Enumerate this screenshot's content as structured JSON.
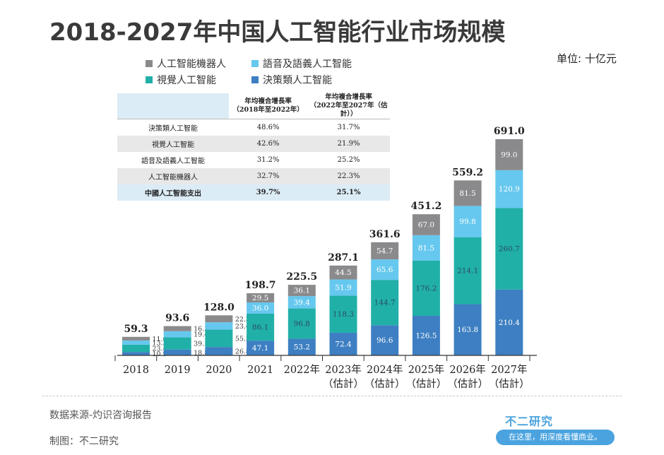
{
  "header": {
    "title": "2018-2027年中国人工智能行业市场规模",
    "unit": "单位: 十亿元"
  },
  "colors": {
    "robot": "#8a8a8c",
    "speech": "#66c8ee",
    "vision": "#21b0a8",
    "decision": "#3d7fc2"
  },
  "legend": [
    {
      "label": "人工智能機器人",
      "color": "#8a8a8c"
    },
    {
      "label": "語音及語義人工智能",
      "color": "#66c8ee"
    },
    {
      "label": "視覺人工智能",
      "color": "#21b0a8"
    },
    {
      "label": "決策類人工智能",
      "color": "#3d7fc2"
    }
  ],
  "growth_table": {
    "headers": [
      "",
      "年均複合增長率\n（2018年至2022年）",
      "年均複合增長率\n（2022年至2027年（估計））"
    ],
    "rows": [
      {
        "label": "決策類人工智能",
        "a": "48.6%",
        "b": "31.7%"
      },
      {
        "label": "視覺人工智能",
        "a": "42.6%",
        "b": "21.9%"
      },
      {
        "label": "語音及語義人工智能",
        "a": "31.2%",
        "b": "25.2%"
      },
      {
        "label": "人工智能機器人",
        "a": "32.7%",
        "b": "22.3%"
      },
      {
        "label": "中國人工智能支出",
        "a": "39.7%",
        "b": "25.1%"
      }
    ]
  },
  "chart_data": {
    "type": "bar",
    "stacked": true,
    "categories": [
      "2018",
      "2019",
      "2020",
      "2021",
      "2022年",
      "2023年\n（估計）",
      "2024年\n（估計）",
      "2025年\n（估計）",
      "2026年\n（估計）",
      "2027年\n（估計）"
    ],
    "totals": [
      "59.3",
      "93.6",
      "128.0",
      "198.7",
      "225.5",
      "287.1",
      "361.6",
      "451.2",
      "559.2",
      "691.0"
    ],
    "series": [
      {
        "name": "決策類人工智能",
        "color": "#3d7fc2",
        "values": [
          10.9,
          18.8,
          26.8,
          47.1,
          53.2,
          72.4,
          96.6,
          126.5,
          163.8,
          210.4
        ]
      },
      {
        "name": "視覺人工智能",
        "color": "#21b0a8",
        "values": [
          23.4,
          39.1,
          55.5,
          86.1,
          96.8,
          118.3,
          144.7,
          176.2,
          214.1,
          260.7
        ]
      },
      {
        "name": "語音及語義人工智能",
        "color": "#66c8ee",
        "values": [
          13.3,
          19.4,
          23.4,
          36.0,
          39.4,
          51.9,
          65.6,
          81.5,
          99.8,
          120.9
        ]
      },
      {
        "name": "人工智能機器人",
        "color": "#8a8a8c",
        "values": [
          11.6,
          16.3,
          22.3,
          29.5,
          36.1,
          44.5,
          54.7,
          67.0,
          81.5,
          99.0
        ]
      }
    ],
    "ylim": [
      0,
      691
    ]
  },
  "footer": {
    "source": "数据来源-灼识咨询报告",
    "maker": "制图：不二研究"
  },
  "brand": {
    "name": "不二研究",
    "slogan": "在这里，用深度看懂商业。"
  }
}
